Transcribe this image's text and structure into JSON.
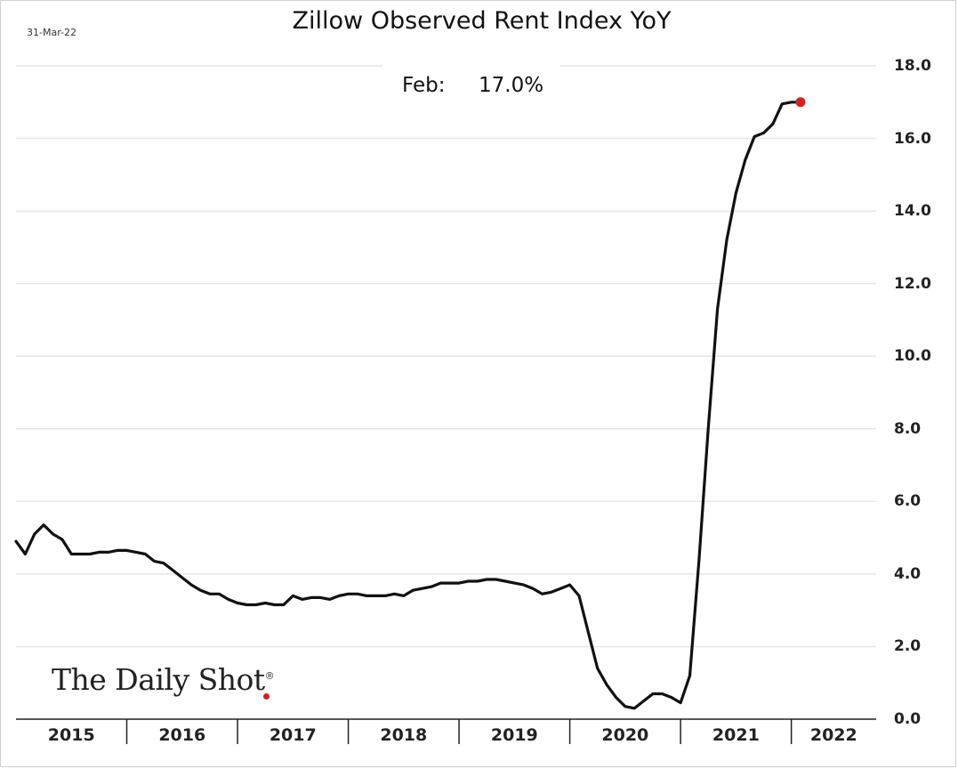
{
  "header": {
    "date": "31-Mar-22",
    "title": "Zillow Observed Rent Index YoY"
  },
  "annotation": {
    "label": "Feb:",
    "value": "17.0%"
  },
  "logo": {
    "text": "The Daily Shot",
    "mark": "®"
  },
  "colors": {
    "line": "#111111",
    "marker": "#d62020",
    "grid": "#e6e6e6"
  },
  "chart_data": {
    "type": "line",
    "title": "Zillow Observed Rent Index YoY",
    "xlabel": "",
    "ylabel": "",
    "ylim": [
      0,
      18
    ],
    "y_ticks": [
      "0.0",
      "2.0",
      "4.0",
      "6.0",
      "8.0",
      "10.0",
      "12.0",
      "14.0",
      "16.0",
      "18.0"
    ],
    "x_tick_labels": [
      "2015",
      "2016",
      "2017",
      "2018",
      "2019",
      "2020",
      "2021",
      "2022"
    ],
    "grid": "horizontal",
    "y_axis_side": "right",
    "last_point_marker": true,
    "series": [
      {
        "x": [
          "2015-01",
          "2015-02",
          "2015-03",
          "2015-04",
          "2015-05",
          "2015-06",
          "2015-07",
          "2015-08",
          "2015-09",
          "2015-10",
          "2015-11",
          "2015-12",
          "2016-01",
          "2016-02",
          "2016-03",
          "2016-04",
          "2016-05",
          "2016-06",
          "2016-07",
          "2016-08",
          "2016-09",
          "2016-10",
          "2016-11",
          "2016-12",
          "2017-01",
          "2017-02",
          "2017-03",
          "2017-04",
          "2017-05",
          "2017-06",
          "2017-07",
          "2017-08",
          "2017-09",
          "2017-10",
          "2017-11",
          "2017-12",
          "2018-01",
          "2018-02",
          "2018-03",
          "2018-04",
          "2018-05",
          "2018-06",
          "2018-07",
          "2018-08",
          "2018-09",
          "2018-10",
          "2018-11",
          "2018-12",
          "2019-01",
          "2019-02",
          "2019-03",
          "2019-04",
          "2019-05",
          "2019-06",
          "2019-07",
          "2019-08",
          "2019-09",
          "2019-10",
          "2019-11",
          "2019-12",
          "2020-01",
          "2020-02",
          "2020-03",
          "2020-04",
          "2020-05",
          "2020-06",
          "2020-07",
          "2020-08",
          "2020-09",
          "2020-10",
          "2020-11",
          "2020-12",
          "2021-01",
          "2021-02",
          "2021-03",
          "2021-04",
          "2021-05",
          "2021-06",
          "2021-07",
          "2021-08",
          "2021-09",
          "2021-10",
          "2021-11",
          "2021-12",
          "2022-01",
          "2022-02"
        ],
        "values": [
          4.9,
          4.55,
          5.1,
          5.35,
          5.1,
          4.95,
          4.55,
          4.55,
          4.55,
          4.6,
          4.6,
          4.65,
          4.65,
          4.6,
          4.55,
          4.35,
          4.3,
          4.1,
          3.9,
          3.7,
          3.55,
          3.45,
          3.45,
          3.3,
          3.2,
          3.15,
          3.15,
          3.2,
          3.15,
          3.15,
          3.4,
          3.3,
          3.35,
          3.35,
          3.3,
          3.4,
          3.45,
          3.45,
          3.4,
          3.4,
          3.4,
          3.45,
          3.4,
          3.55,
          3.6,
          3.65,
          3.75,
          3.75,
          3.75,
          3.8,
          3.8,
          3.85,
          3.85,
          3.8,
          3.75,
          3.7,
          3.6,
          3.45,
          3.5,
          3.6,
          3.7,
          3.4,
          2.4,
          1.4,
          0.95,
          0.6,
          0.35,
          0.3,
          0.5,
          0.7,
          0.7,
          0.6,
          0.45,
          1.2,
          4.4,
          8.0,
          11.3,
          13.2,
          14.5,
          15.4,
          16.05,
          16.15,
          16.4,
          16.95,
          17.0,
          17.0
        ]
      }
    ]
  }
}
